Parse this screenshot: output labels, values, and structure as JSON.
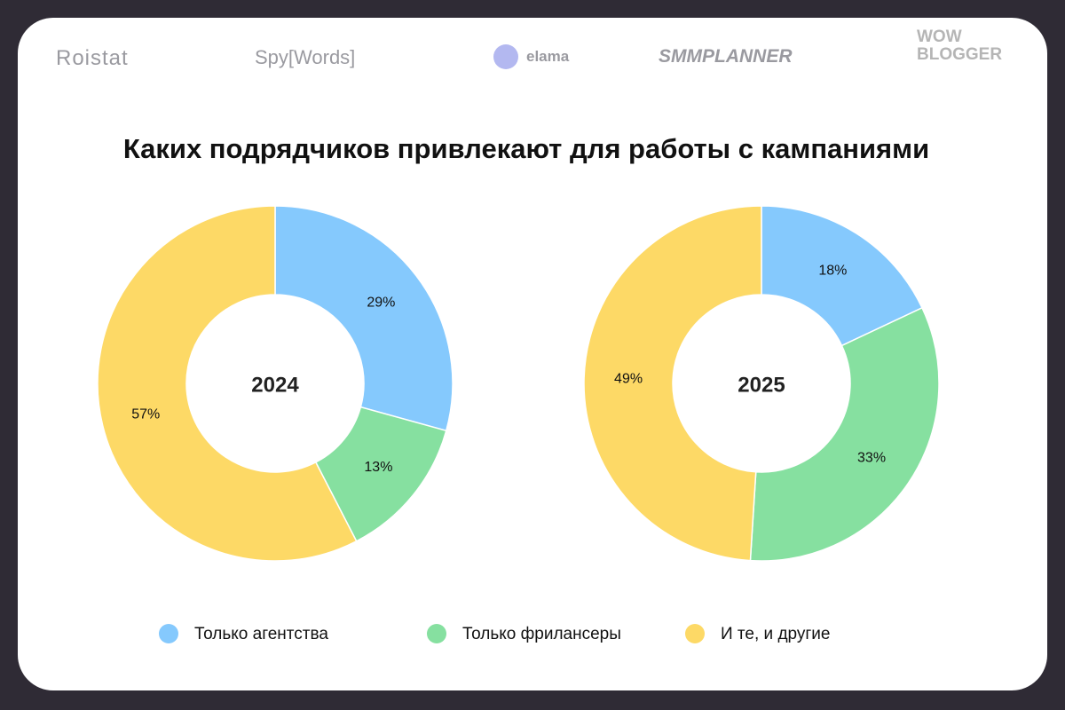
{
  "logos": [
    "Roistat",
    "Spy[Words]",
    "elama",
    "SMMPLANNER",
    "WOW BLOGGER"
  ],
  "title": "Каких подрядчиков привлекают для работы с кампаниями",
  "legend": [
    {
      "name": "Только агентства",
      "color": "#85c9fd"
    },
    {
      "name": "Только фрилансеры",
      "color": "#86e0a0"
    },
    {
      "name": "И те, и другие",
      "color": "#fdd966"
    }
  ],
  "chart_data": [
    {
      "type": "pie",
      "label": "2024",
      "values": [
        29,
        13,
        57
      ],
      "value_labels": [
        "29%",
        "13%",
        "57%"
      ]
    },
    {
      "type": "pie",
      "label": "2025",
      "values": [
        18,
        33,
        49
      ],
      "value_labels": [
        "18%",
        "33%",
        "49%"
      ]
    }
  ]
}
